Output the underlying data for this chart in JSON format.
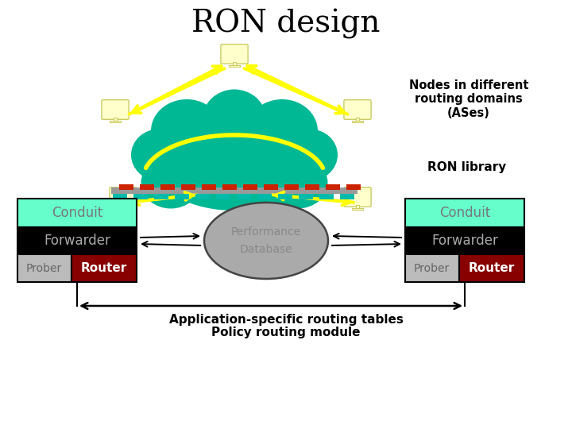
{
  "title": "RON design",
  "title_fontsize": 28,
  "bg_color": "#ffffff",
  "cloud_color": "#00b894",
  "node_color": "#ffffcc",
  "node_edge": "#cccc66",
  "arrow_color": "#ffff00",
  "conduit_color": "#66ffcc",
  "conduit_text": "Conduit",
  "conduit_text_color": "#777777",
  "forwarder_color": "#000000",
  "forwarder_text": "Forwarder",
  "forwarder_text_color": "#aaaaaa",
  "prober_color": "#bbbbbb",
  "prober_text": "Prober",
  "prober_text_color": "#666666",
  "router_color": "#880000",
  "router_text": "Router",
  "router_text_color": "#ffffff",
  "db_color": "#aaaaaa",
  "db_edge_color": "#444444",
  "db_text1": "Performance",
  "db_text2": "Database",
  "db_text_color": "#888888",
  "nodes_label": "Nodes in different\nrouting domains\n(ASes)",
  "ron_library_label": "RON library",
  "app_routing_label": "Application-specific routing tables",
  "policy_label": "Policy routing module",
  "dashed_red": "#cc2200",
  "dashed_teal": "#00bbaa",
  "bar_gray": "#999999"
}
